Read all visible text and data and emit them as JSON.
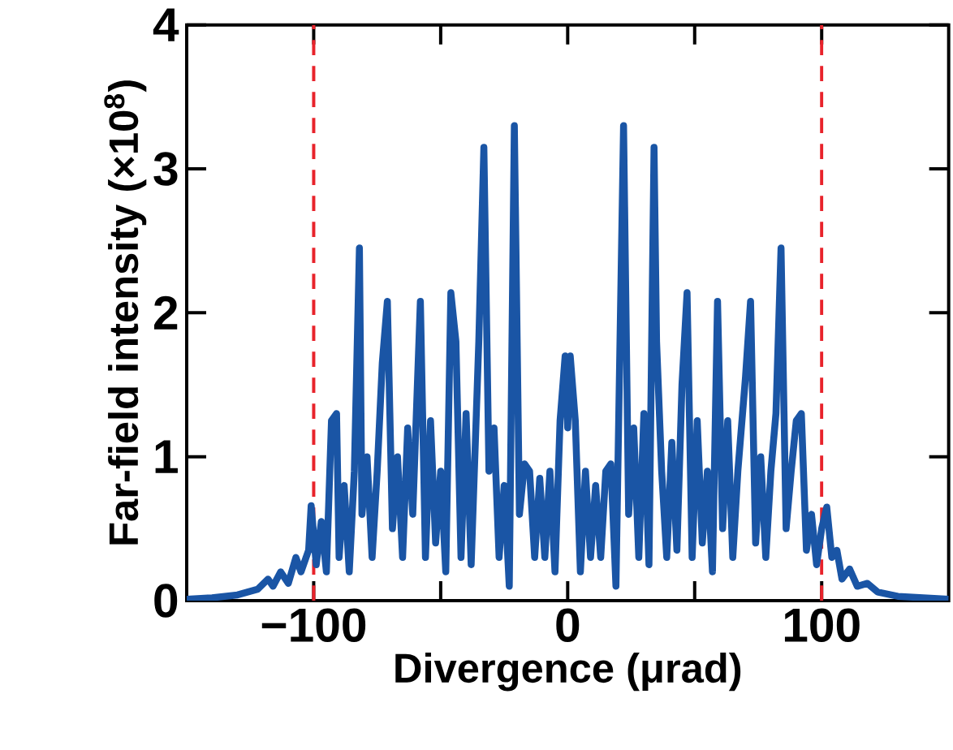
{
  "chart_data": {
    "type": "line",
    "xlabel": "Divergence (μrad)",
    "ylabel": "Far-field intensity (×10$^{8}$)",
    "xlim": [
      -150,
      150
    ],
    "ylim": [
      0,
      4
    ],
    "xticks": [
      {
        "value": -100,
        "label": "−100"
      },
      {
        "value": -50,
        "label": null
      },
      0,
      {
        "value": 50,
        "label": null
      },
      100
    ],
    "yticks": [
      0,
      1,
      2,
      3,
      4
    ],
    "ref_lines": [
      {
        "axis": "x",
        "value": -100,
        "color": "#e8232b",
        "line_style": "dashed"
      },
      {
        "axis": "x",
        "value": 100,
        "color": "#e8232b",
        "line_style": "dashed"
      }
    ],
    "series": [
      {
        "color": "#1a55a5",
        "x": [
          -150,
          -140,
          -130,
          -122,
          -118,
          -116,
          -113,
          -110,
          -107,
          -105,
          -102,
          -101,
          -99,
          -97,
          -95,
          -93,
          -91,
          -90,
          -88,
          -86,
          -84,
          -82,
          -81,
          -79,
          -77,
          -75,
          -73,
          -71,
          -69,
          -67,
          -65,
          -63,
          -61,
          -58,
          -56,
          -54,
          -52,
          -50,
          -48,
          -46,
          -44,
          -42,
          -40,
          -38,
          -35,
          -33,
          -31,
          -29,
          -27,
          -25,
          -23,
          -21,
          -19,
          -17,
          -15,
          -13,
          -11,
          -9,
          -7,
          -5,
          -3,
          -1,
          0,
          1,
          3,
          5,
          7,
          9,
          11,
          13,
          15,
          17,
          19,
          22,
          24,
          26,
          28,
          30,
          32,
          34,
          35,
          37,
          39,
          41,
          43,
          45,
          47,
          49,
          51,
          53,
          55,
          57,
          59,
          61,
          63,
          65,
          67,
          70,
          72,
          74,
          76,
          78,
          80,
          82,
          84,
          86,
          88,
          90,
          92,
          94,
          96,
          98,
          100,
          102,
          104,
          106,
          108,
          111,
          114,
          118,
          122,
          130,
          140,
          150
        ],
        "values": [
          0.01,
          0.02,
          0.04,
          0.08,
          0.15,
          0.1,
          0.2,
          0.12,
          0.3,
          0.2,
          0.35,
          0.66,
          0.25,
          0.55,
          0.2,
          1.25,
          1.3,
          0.3,
          0.8,
          0.2,
          0.9,
          2.45,
          0.6,
          1.0,
          0.3,
          0.9,
          1.65,
          2.08,
          0.5,
          1.0,
          0.3,
          1.2,
          0.6,
          2.08,
          0.3,
          1.25,
          0.4,
          0.9,
          0.2,
          2.14,
          1.8,
          0.3,
          1.3,
          0.25,
          1.8,
          3.15,
          0.9,
          1.2,
          0.3,
          0.8,
          0.1,
          3.3,
          0.6,
          0.95,
          0.9,
          0.3,
          0.85,
          0.3,
          0.9,
          0.2,
          1.25,
          1.7,
          1.2,
          1.7,
          1.25,
          0.2,
          0.9,
          0.3,
          0.8,
          0.3,
          0.9,
          0.95,
          0.1,
          3.3,
          0.6,
          1.2,
          0.3,
          1.3,
          0.25,
          3.15,
          1.8,
          0.9,
          0.3,
          1.1,
          0.35,
          1.5,
          2.14,
          0.3,
          1.25,
          0.4,
          0.9,
          0.2,
          2.08,
          0.5,
          1.25,
          0.3,
          0.9,
          1.55,
          2.08,
          0.4,
          1.0,
          0.3,
          0.9,
          1.3,
          2.45,
          0.5,
          0.9,
          1.25,
          1.3,
          0.35,
          0.6,
          0.25,
          0.5,
          0.65,
          0.3,
          0.35,
          0.15,
          0.22,
          0.1,
          0.12,
          0.06,
          0.03,
          0.02,
          0.01
        ]
      }
    ]
  }
}
